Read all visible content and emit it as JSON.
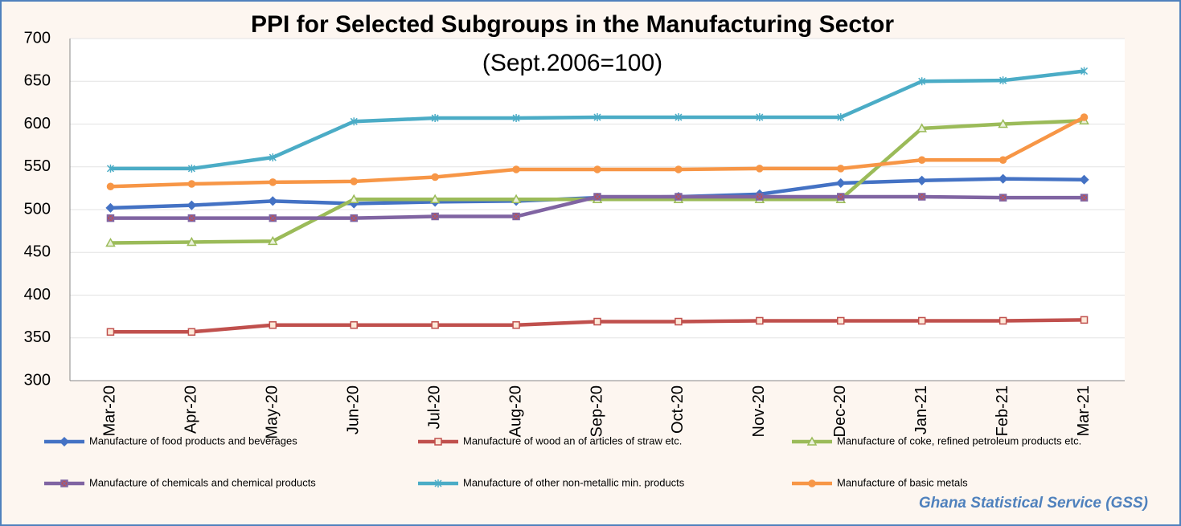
{
  "chart_data": {
    "type": "line",
    "title": "PPI for Selected Subgroups in the Manufacturing Sector",
    "subtitle": "(Sept.2006=100)",
    "source": "Ghana Statistical Service (GSS)",
    "categories": [
      "Mar-20",
      "Apr-20",
      "May-20",
      "Jun-20",
      "Jul-20",
      "Aug-20",
      "Sep-20",
      "Oct-20",
      "Nov-20",
      "Dec-20",
      "Jan-21",
      "Feb-21",
      "Mar-21"
    ],
    "ylim": [
      300,
      700
    ],
    "yticks": [
      300,
      350,
      400,
      450,
      500,
      550,
      600,
      650,
      700
    ],
    "grid": true,
    "series": [
      {
        "name": "Manufacture of food products and beverages",
        "color": "#4472c4",
        "marker": "diamond",
        "values": [
          502,
          505,
          510,
          507,
          509,
          510,
          514,
          515,
          518,
          531,
          534,
          536,
          535
        ]
      },
      {
        "name": "Manufacture of wood an of articles of straw etc.",
        "color": "#c0504d",
        "marker": "square",
        "values": [
          357,
          357,
          365,
          365,
          365,
          365,
          369,
          369,
          370,
          370,
          370,
          370,
          371
        ]
      },
      {
        "name": "Manufacture of coke, refined petroleum products etc.",
        "color": "#9bbb59",
        "marker": "triangle",
        "values": [
          461,
          462,
          463,
          512,
          512,
          512,
          512,
          512,
          512,
          512,
          595,
          600,
          604
        ]
      },
      {
        "name": "Manufacture of chemicals and chemical products",
        "color": "#8064a2",
        "marker": "xsquare",
        "values": [
          490,
          490,
          490,
          490,
          492,
          492,
          515,
          515,
          515,
          515,
          515,
          514,
          514
        ]
      },
      {
        "name": "Manufacture of other non-metallic min. products",
        "color": "#4bacc6",
        "marker": "star",
        "values": [
          548,
          548,
          561,
          603,
          607,
          607,
          608,
          608,
          608,
          608,
          650,
          651,
          662
        ]
      },
      {
        "name": "Manufacture of basic metals",
        "color": "#f79646",
        "marker": "circle",
        "values": [
          527,
          530,
          532,
          533,
          538,
          547,
          547,
          547,
          548,
          548,
          558,
          558,
          608
        ]
      }
    ]
  }
}
